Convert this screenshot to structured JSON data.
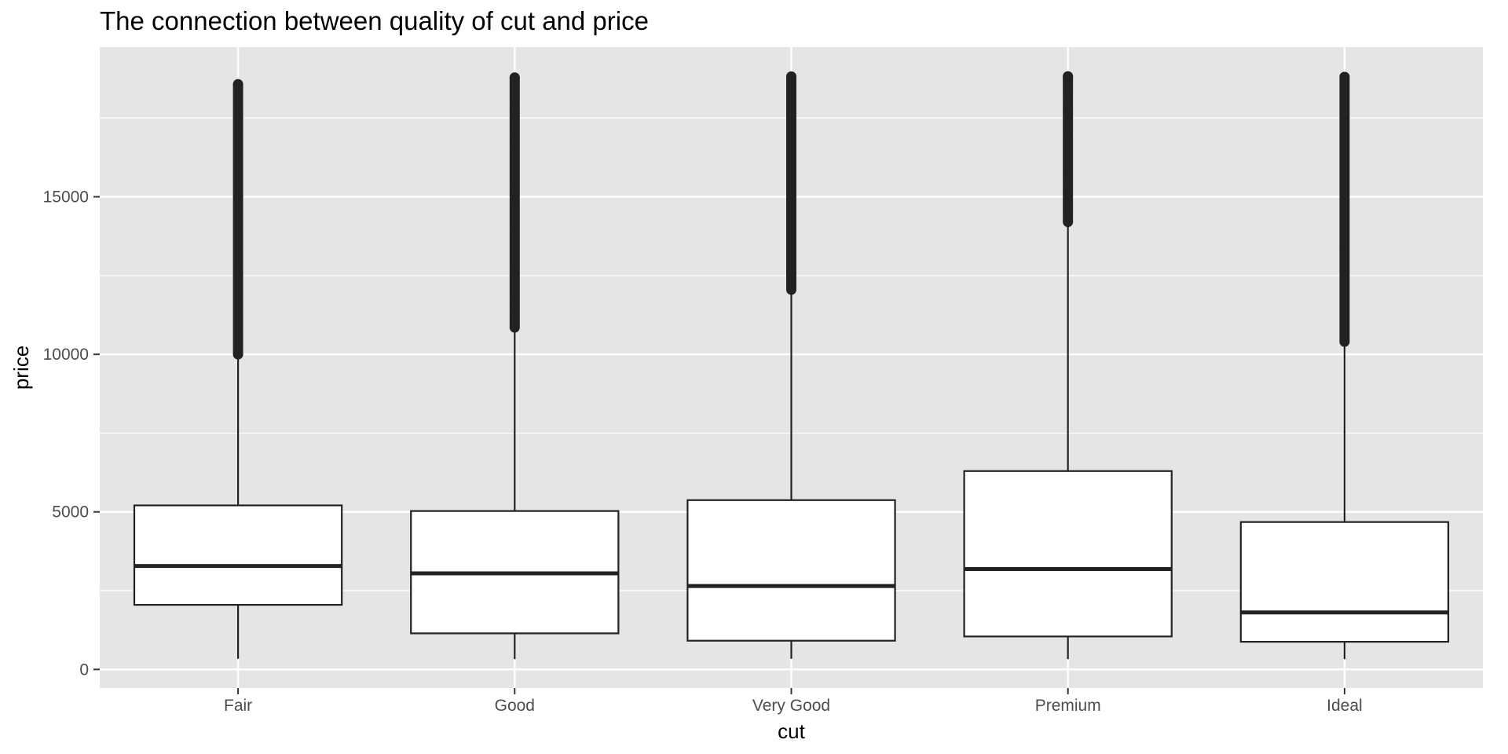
{
  "chart_data": {
    "type": "box",
    "title": "The connection between quality of cut and price",
    "xlabel": "cut",
    "ylabel": "price",
    "ylim": [
      -590,
      19750
    ],
    "y_ticks": [
      0,
      5000,
      10000,
      15000
    ],
    "y_tick_labels": [
      "0",
      "5000",
      "10000",
      "15000"
    ],
    "grid": true,
    "panel_background": "#e5e5e5",
    "grid_color": "#ffffff",
    "box_fill": "#ffffff",
    "line_color": "#222222",
    "categories": [
      "Fair",
      "Good",
      "Very Good",
      "Premium",
      "Ideal"
    ],
    "boxes": [
      {
        "category": "Fair",
        "min": 337,
        "q1": 2050,
        "median": 3282,
        "q3": 5206,
        "whisker_high": 9950,
        "outliers_range": [
          10000,
          18574
        ]
      },
      {
        "category": "Good",
        "min": 327,
        "q1": 1145,
        "median": 3050,
        "q3": 5028,
        "whisker_high": 10850,
        "outliers_range": [
          10850,
          18788
        ]
      },
      {
        "category": "Very Good",
        "min": 336,
        "q1": 912,
        "median": 2648,
        "q3": 5373,
        "whisker_high": 12050,
        "outliers_range": [
          12050,
          18818
        ]
      },
      {
        "category": "Premium",
        "min": 326,
        "q1": 1046,
        "median": 3185,
        "q3": 6296,
        "whisker_high": 14200,
        "outliers_range": [
          14200,
          18823
        ]
      },
      {
        "category": "Ideal",
        "min": 326,
        "q1": 878,
        "median": 1810,
        "q3": 4678,
        "whisker_high": 10400,
        "outliers_range": [
          10400,
          18806
        ]
      }
    ]
  }
}
